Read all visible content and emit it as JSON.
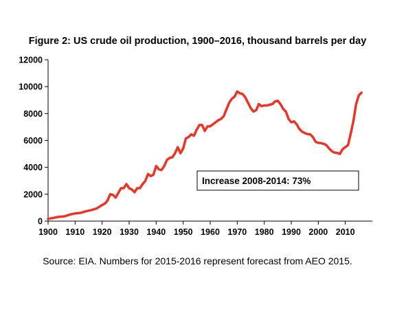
{
  "chart_data": {
    "type": "line",
    "title": "Figure 2: US crude oil production, 1900–2016, thousand barrels per day",
    "xlabel": "",
    "ylabel": "",
    "xlim": [
      1900,
      2020
    ],
    "ylim": [
      0,
      12000
    ],
    "xticks": [
      1900,
      1910,
      1920,
      1930,
      1940,
      1950,
      1960,
      1970,
      1980,
      1990,
      2000,
      2010
    ],
    "yticks": [
      0,
      2000,
      4000,
      6000,
      8000,
      10000,
      12000
    ],
    "grid": false,
    "line_color": "#ee3322",
    "annotation": "Increase 2008-2014: 73%",
    "source": "Source: EIA. Numbers for 2015-2016 represent forecast from AEO 2015.",
    "series": [
      {
        "x": [
          1900,
          1902,
          1904,
          1906,
          1908,
          1910,
          1912,
          1914,
          1916,
          1918,
          1920,
          1921,
          1922,
          1923,
          1924,
          1925,
          1926,
          1927,
          1928,
          1929,
          1930,
          1931,
          1932,
          1933,
          1934,
          1935,
          1936,
          1937,
          1938,
          1939,
          1940,
          1941,
          1942,
          1943,
          1944,
          1945,
          1946,
          1947,
          1948,
          1949,
          1950,
          1951,
          1952,
          1953,
          1954,
          1955,
          1956,
          1957,
          1958,
          1959,
          1960,
          1961,
          1962,
          1963,
          1964,
          1965,
          1966,
          1967,
          1968,
          1969,
          1970,
          1971,
          1972,
          1973,
          1974,
          1975,
          1976,
          1977,
          1978,
          1979,
          1980,
          1981,
          1982,
          1983,
          1984,
          1985,
          1986,
          1987,
          1988,
          1989,
          1990,
          1991,
          1992,
          1993,
          1994,
          1995,
          1996,
          1997,
          1998,
          1999,
          2000,
          2001,
          2002,
          2003,
          2004,
          2005,
          2006,
          2007,
          2008,
          2009,
          2010,
          2011,
          2012,
          2013,
          2014,
          2015,
          2016
        ],
        "y": [
          170,
          240,
          320,
          350,
          480,
          570,
          610,
          730,
          820,
          940,
          1200,
          1300,
          1530,
          2000,
          1950,
          1750,
          2100,
          2450,
          2450,
          2750,
          2450,
          2350,
          2150,
          2450,
          2450,
          2750,
          3000,
          3500,
          3350,
          3450,
          4100,
          3850,
          3800,
          4100,
          4550,
          4700,
          4750,
          5050,
          5500,
          5050,
          5400,
          6150,
          6250,
          6450,
          6350,
          6800,
          7150,
          7150,
          6700,
          7050,
          7050,
          7200,
          7350,
          7500,
          7600,
          7800,
          8300,
          8800,
          9100,
          9250,
          9640,
          9500,
          9450,
          9200,
          8800,
          8400,
          8150,
          8250,
          8700,
          8550,
          8600,
          8600,
          8650,
          8700,
          8900,
          8950,
          8700,
          8350,
          8150,
          7600,
          7350,
          7420,
          7200,
          6850,
          6650,
          6550,
          6470,
          6450,
          6250,
          5900,
          5820,
          5800,
          5750,
          5650,
          5400,
          5200,
          5100,
          5070,
          5000,
          5350,
          5500,
          5650,
          6500,
          7450,
          8700,
          9350,
          9550
        ]
      }
    ]
  }
}
